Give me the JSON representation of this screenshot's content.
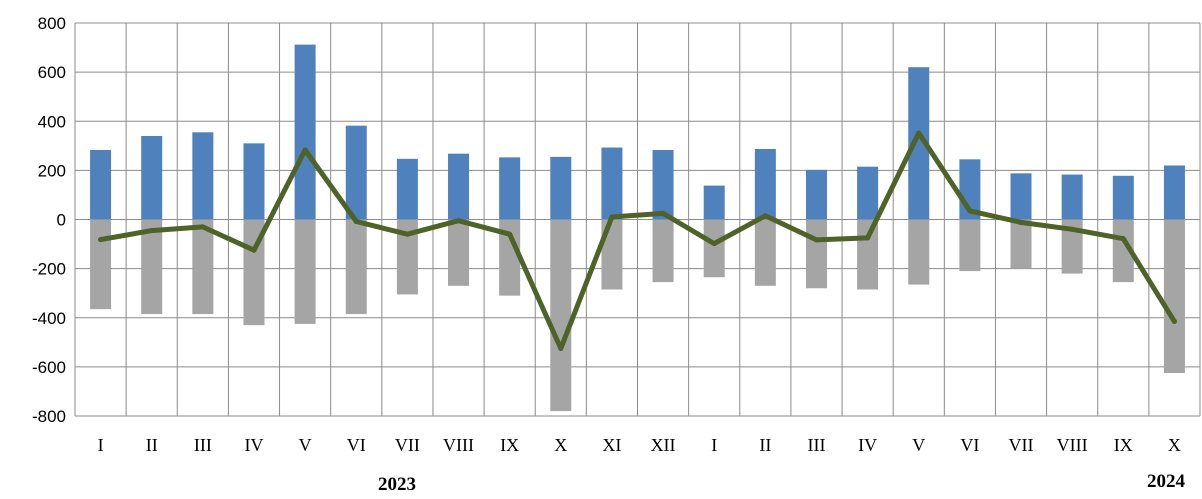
{
  "chart_data": {
    "type": "bar",
    "title": "",
    "xlabel": "",
    "ylabel": "",
    "ylim": [
      -800,
      800
    ],
    "yticks": [
      800,
      600,
      400,
      200,
      0,
      -200,
      -400,
      -600,
      -800
    ],
    "grid": true,
    "categories": [
      "I",
      "II",
      "III",
      "IV",
      "V",
      "VI",
      "VII",
      "VIII",
      "IX",
      "X",
      "XI",
      "XII",
      "I",
      "II",
      "III",
      "IV",
      "V",
      "VI",
      "VII",
      "VIII",
      "IX",
      "X"
    ],
    "year_labels": [
      {
        "text": "2023",
        "start_index": 0,
        "end_index": 11
      },
      {
        "text": "2024",
        "start_index": 12,
        "end_index": 21
      }
    ],
    "series": [
      {
        "kind": "bar",
        "color": "#4F81BD",
        "values": [
          283,
          340,
          355,
          310,
          712,
          382,
          247,
          268,
          253,
          255,
          293,
          283,
          138,
          287,
          202,
          215,
          620,
          245,
          188,
          183,
          178,
          220
        ]
      },
      {
        "kind": "bar",
        "color": "#A5A5A5",
        "values": [
          -365,
          -385,
          -385,
          -430,
          -425,
          -385,
          -305,
          -270,
          -310,
          -780,
          -285,
          -255,
          -235,
          -270,
          -280,
          -285,
          -265,
          -210,
          -200,
          -220,
          -255,
          -625
        ]
      },
      {
        "kind": "line",
        "color": "#4F6228",
        "values": [
          -82,
          -45,
          -30,
          -125,
          283,
          -8,
          -60,
          -5,
          -60,
          -525,
          10,
          25,
          -98,
          15,
          -83,
          -75,
          352,
          35,
          -12,
          -40,
          -78,
          -415
        ]
      }
    ]
  }
}
